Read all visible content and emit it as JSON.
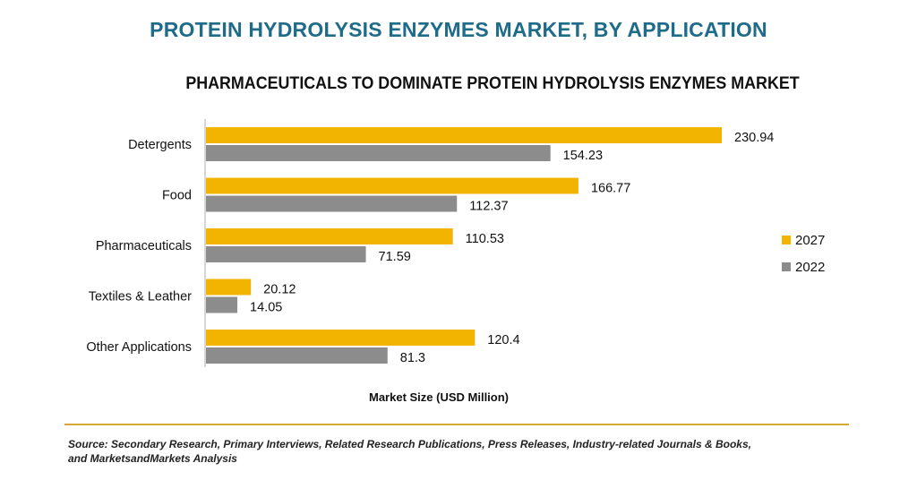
{
  "page": {
    "title": "PROTEIN HYDROLYSIS ENZYMES MARKET, BY APPLICATION",
    "subtitle": "PHARMACEUTICALS TO DOMINATE PROTEIN HYDROLYSIS ENZYMES MARKET",
    "source_line1": "Source: Secondary Research, Primary Interviews, Related Research Publications, Press Releases, Industry-related Journals & Books,",
    "source_line2": "and MarketsandMarkets Analysis"
  },
  "chart_data": {
    "type": "bar",
    "orientation": "horizontal",
    "title": "PHARMACEUTICALS TO DOMINATE PROTEIN HYDROLYSIS ENZYMES MARKET",
    "xlabel": "Market Size (USD Million)",
    "ylabel": "",
    "categories": [
      "Detergents",
      "Food",
      "Pharmaceuticals",
      "Textiles & Leather",
      "Other Applications"
    ],
    "series": [
      {
        "name": "2027",
        "color": "#f2b400",
        "values": [
          230.94,
          166.77,
          110.53,
          20.12,
          120.4
        ],
        "labels": [
          "230.94",
          "166.77",
          "110.53",
          "20.12",
          "120.4"
        ]
      },
      {
        "name": "2022",
        "color": "#8c8c8c",
        "values": [
          154.23,
          112.37,
          71.59,
          14.05,
          81.3
        ],
        "labels": [
          "154.23",
          "112.37",
          "71.59",
          "14.05",
          "81.3"
        ]
      }
    ],
    "xlim": [
      0,
      230.94
    ],
    "grid": false,
    "legend": "right"
  }
}
